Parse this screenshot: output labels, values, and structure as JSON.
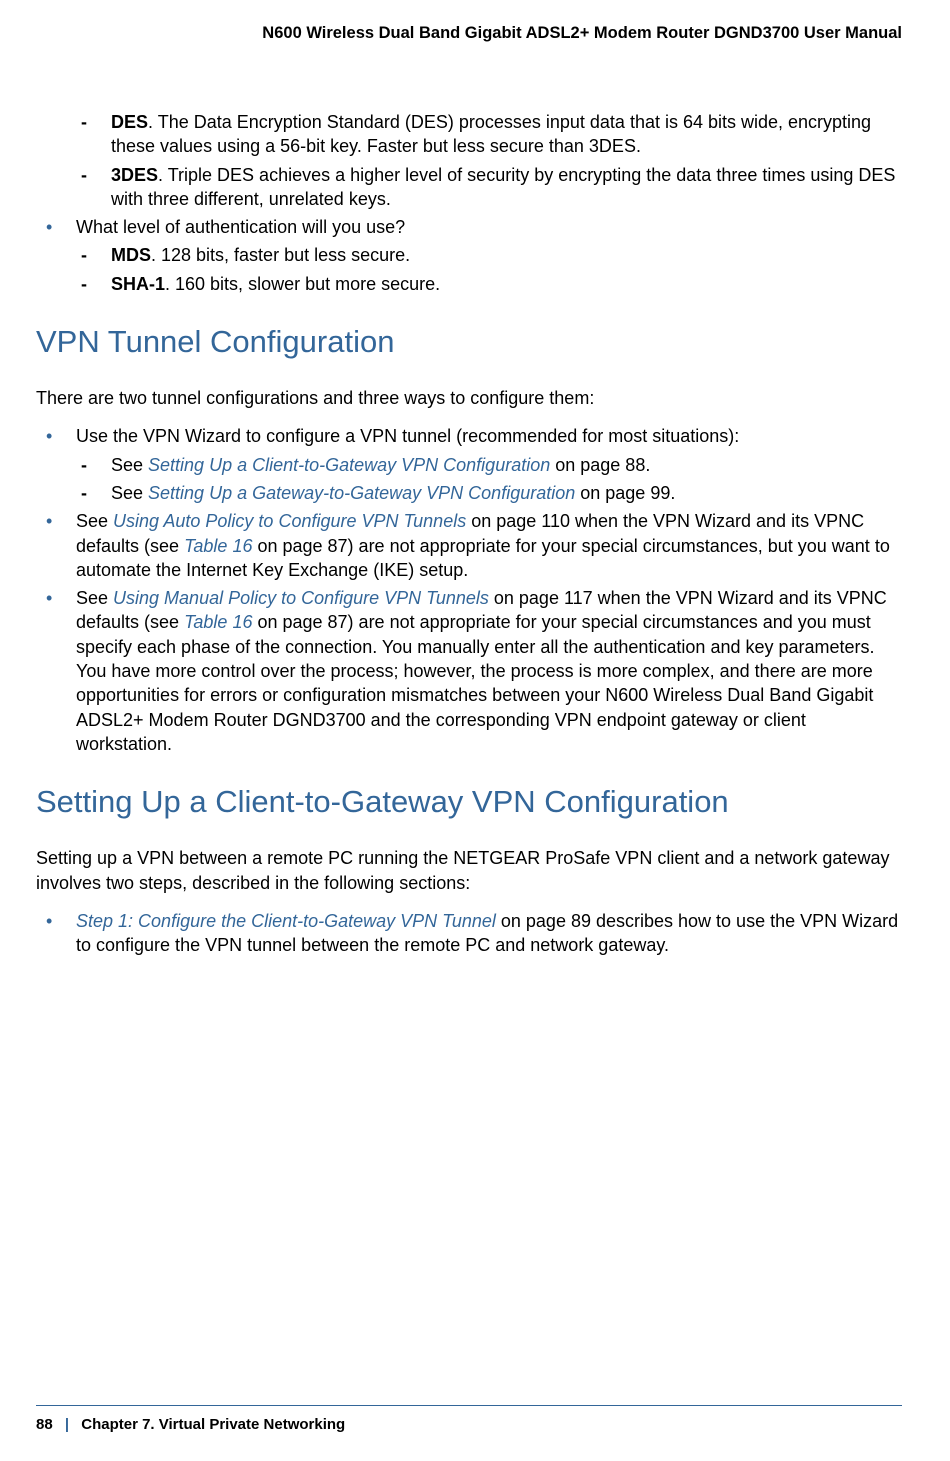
{
  "header": {
    "title": "N600 Wireless Dual Band Gigabit ADSL2+ Modem Router DGND3700 User Manual"
  },
  "body": {
    "des_label": "DES",
    "des_text": ". The Data Encryption Standard (DES) processes input data that is 64 bits wide, encrypting these values using a 56-bit key. Faster but less secure than 3DES.",
    "threedes_label": "3DES",
    "threedes_text": ". Triple DES achieves a higher level of security by encrypting the data three times using DES with three different, unrelated keys.",
    "auth_question": "What level of authentication will you use?",
    "mds_label": "MDS",
    "mds_text": ". 128 bits, faster but less secure.",
    "sha1_label": "SHA-1",
    "sha1_text": ". 160 bits, slower but more secure.",
    "heading1": "VPN Tunnel Configuration",
    "tunnel_intro": "There are two tunnel configurations and three ways to configure them:",
    "wizard_text": "Use the VPN Wizard to configure a VPN tunnel (recommended for most situations):",
    "see1_prefix": "See ",
    "see1_link": "Setting Up a Client-to-Gateway VPN Configuration",
    "see1_suffix": " on page 88.",
    "see2_prefix": "See ",
    "see2_link": "Setting Up a Gateway-to-Gateway VPN Configuration",
    "see2_suffix": " on page 99.",
    "auto_prefix": "See ",
    "auto_link": "Using Auto Policy to Configure VPN Tunnels",
    "auto_mid1": " on page 110 when the VPN Wizard and its VPNC defaults (see ",
    "auto_link2": "Table 16",
    "auto_suffix": " on page 87) are not appropriate for your special circumstances, but you want to automate the Internet Key Exchange (IKE) setup.",
    "manual_prefix": "See ",
    "manual_link": "Using Manual Policy to Configure VPN Tunnels",
    "manual_mid1": " on page 117 when the VPN Wizard and its VPNC defaults (see ",
    "manual_link2": "Table 16",
    "manual_suffix": " on page 87) are not appropriate for your special circumstances and you must specify each phase of the connection. You manually enter all the authentication and key parameters. You have more control over the process; however, the process is more complex, and there are more opportunities for errors or configuration mismatches between your N600 Wireless Dual Band Gigabit ADSL2+ Modem Router DGND3700 and the corresponding VPN endpoint gateway or client workstation.",
    "heading2": "Setting Up a Client-to-Gateway VPN Configuration",
    "settingup_intro": "Setting up a VPN between a remote PC running the NETGEAR ProSafe VPN client and a network gateway involves two steps, described in the following sections:",
    "step1_link": "Step 1: Configure the Client-to-Gateway VPN Tunnel",
    "step1_suffix": " on page 89 describes how to use the VPN Wizard to configure the VPN tunnel between the remote PC and network gateway."
  },
  "footer": {
    "page": "88",
    "divider": "|",
    "chapter": "Chapter 7.  Virtual Private Networking"
  }
}
